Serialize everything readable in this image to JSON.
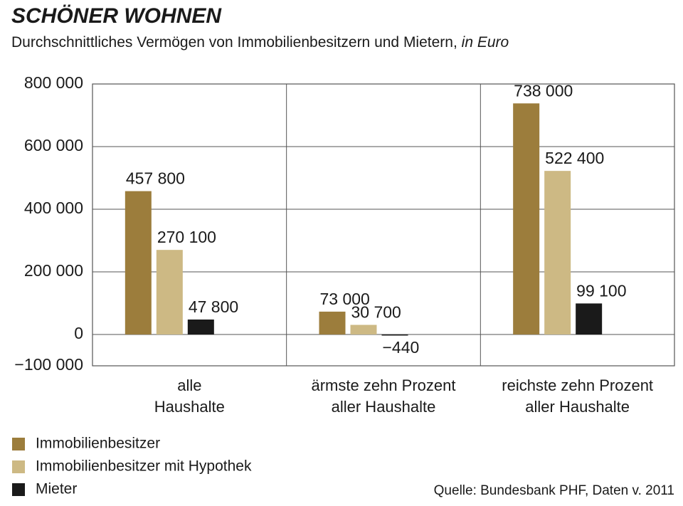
{
  "chart_data": {
    "type": "bar",
    "title": "SCHÖNER WOHNEN",
    "subtitle": "Durchschnittliches Vermögen von Immobilienbesitzern und Mietern,",
    "unit": "in Euro",
    "categories": [
      "alle\nHaushalte",
      "ärmste zehn Prozent\naller Haushalte",
      "reichste zehn Prozent\naller Haushalte"
    ],
    "series": [
      {
        "name": "Immobilienbesitzer",
        "color": "#9c7d3c",
        "values": [
          457800,
          73000,
          738000
        ],
        "value_labels": [
          "457 800",
          "73 000",
          "738 000"
        ]
      },
      {
        "name": "Immobilienbesitzer mit Hypothek",
        "color": "#cdb984",
        "values": [
          270100,
          30700,
          522400
        ],
        "value_labels": [
          "270 100",
          "30 700",
          "522 400"
        ]
      },
      {
        "name": "Mieter",
        "color": "#1a1a1a",
        "values": [
          47800,
          -440,
          99100
        ],
        "value_labels": [
          "47 800",
          "−440",
          "99 100"
        ]
      }
    ],
    "ylim": [
      -100000,
      800000
    ],
    "yticks": [
      {
        "value": -100000,
        "label": "−100 000"
      },
      0,
      {
        "value": 200000,
        "label": "200 000"
      },
      {
        "value": 400000,
        "label": "400 000"
      },
      {
        "value": 600000,
        "label": "600 000"
      },
      {
        "value": 800000,
        "label": "800 000"
      }
    ],
    "grid": true,
    "source": "Quelle: Bundesbank PHF, Daten v. 2011"
  }
}
